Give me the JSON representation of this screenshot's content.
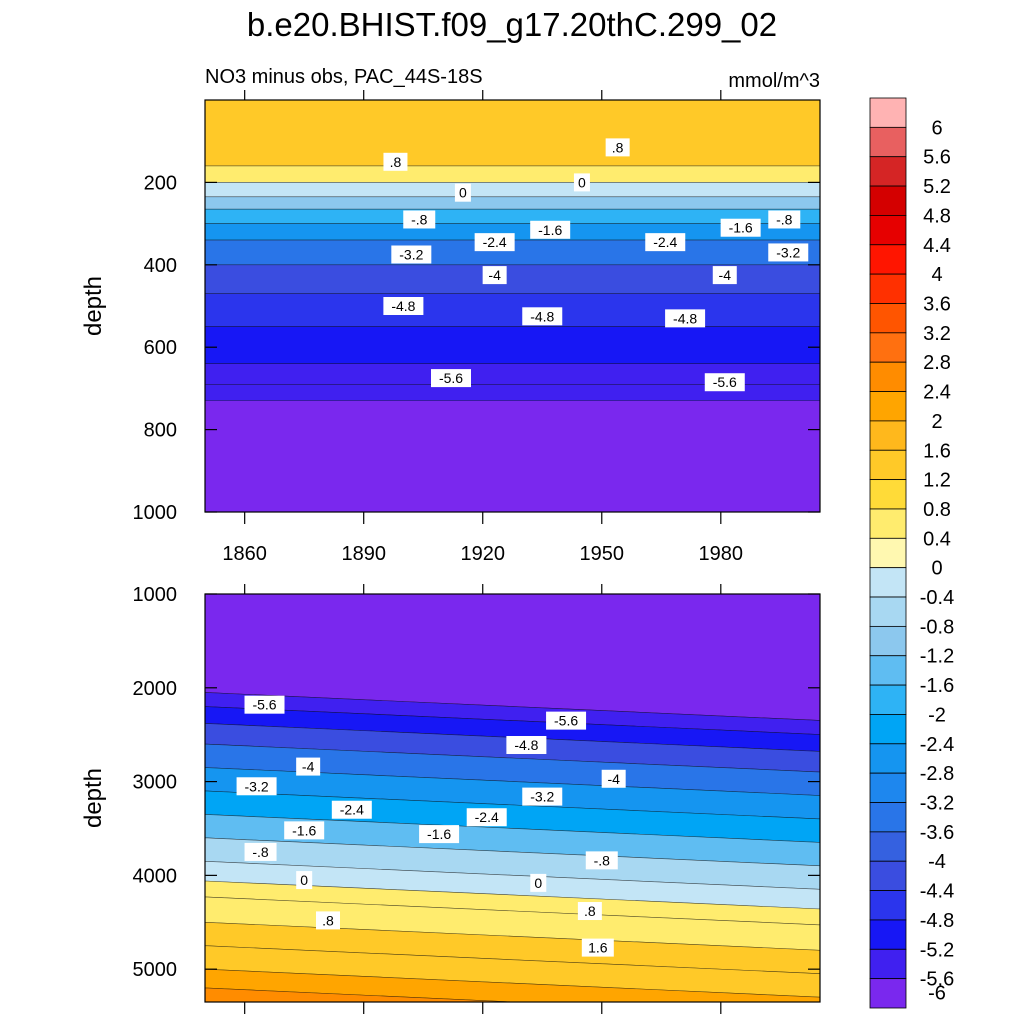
{
  "title": "b.e20.BHIST.f09_g17.20thC.299_02",
  "chart_data": {
    "type": "heatmap",
    "subtitle_left": "NO3 minus obs, PAC_44S-18S",
    "subtitle_right": "mmol/m^3",
    "units": "mmol/m^3",
    "x_range": [
      1850,
      2005
    ],
    "x_ticks": [
      1860,
      1890,
      1920,
      1950,
      1980
    ],
    "x_tick_labels": [
      "1860",
      "1890",
      "1920",
      "1950",
      "1980"
    ],
    "colorbar": {
      "levels": [
        6,
        5.6,
        5.2,
        4.8,
        4.4,
        4,
        3.6,
        3.2,
        2.8,
        2.4,
        2,
        1.6,
        1.2,
        0.8,
        0.4,
        0,
        -0.4,
        -0.8,
        -1.2,
        -1.6,
        -2,
        -2.4,
        -2.8,
        -3.2,
        -3.6,
        -4,
        -4.4,
        -4.8,
        -5.2,
        -5.6,
        -6
      ],
      "labels": [
        "6",
        "5.6",
        "5.2",
        "4.8",
        "4.4",
        "4",
        "3.6",
        "3.2",
        "2.8",
        "2.4",
        "2",
        "1.6",
        "1.2",
        "0.8",
        "0.4",
        "0",
        "-0.4",
        "-0.8",
        "-1.2",
        "-1.6",
        "-2",
        "-2.4",
        "-2.8",
        "-3.2",
        "-3.6",
        "-4",
        "-4.4",
        "-4.8",
        "-5.2",
        "-5.6",
        "-6"
      ],
      "colors": [
        "#FFB3B3",
        "#E86060",
        "#D52525",
        "#D40000",
        "#E60000",
        "#FF1500",
        "#FF3000",
        "#FF5500",
        "#FF7010",
        "#FF8C00",
        "#FFA500",
        "#FFB81C",
        "#FFC928",
        "#FFDB38",
        "#FFEC6E",
        "#FFF8B0",
        "#C3E5F6",
        "#A8D8F2",
        "#8CC8EE",
        "#5FBDF2",
        "#2EB3F5",
        "#00A5F5",
        "#1595F0",
        "#1E87EE",
        "#2975E8",
        "#3561E0",
        "#3A4DE0",
        "#2B35ED",
        "#1717F5",
        "#4020F0",
        "#7A28EE"
      ]
    },
    "panels": [
      {
        "name": "upper",
        "ylabel": "depth",
        "ylim": [
          0,
          1000
        ],
        "y_ticks": [
          200,
          400,
          600,
          800,
          1000
        ],
        "y_tick_labels": [
          "200",
          "400",
          "600",
          "800",
          "1000"
        ],
        "bands": [
          {
            "top": 0,
            "bottom": 160,
            "value": 1.2
          },
          {
            "top": 160,
            "bottom": 200,
            "value": 0.4
          },
          {
            "top": 200,
            "bottom": 235,
            "value": -0.4
          },
          {
            "top": 235,
            "bottom": 265,
            "value": -1.2
          },
          {
            "top": 265,
            "bottom": 300,
            "value": -2.0
          },
          {
            "top": 300,
            "bottom": 340,
            "value": -2.8
          },
          {
            "top": 340,
            "bottom": 400,
            "value": -3.6
          },
          {
            "top": 400,
            "bottom": 470,
            "value": -4.4
          },
          {
            "top": 470,
            "bottom": 550,
            "value": -4.8
          },
          {
            "top": 550,
            "bottom": 640,
            "value": -5.2
          },
          {
            "top": 640,
            "bottom": 690,
            "value": -5.6
          },
          {
            "top": 690,
            "bottom": 730,
            "value": -5.8
          },
          {
            "top": 730,
            "bottom": 1000,
            "value": -6.0
          }
        ],
        "contour_labels": [
          {
            "text": ".8",
            "year": 1898,
            "depth": 150
          },
          {
            "text": ".8",
            "year": 1954,
            "depth": 115
          },
          {
            "text": "0",
            "year": 1915,
            "depth": 225
          },
          {
            "text": "0",
            "year": 1945,
            "depth": 200
          },
          {
            "text": "-.8",
            "year": 1904,
            "depth": 290
          },
          {
            "text": "-.8",
            "year": 1996,
            "depth": 290
          },
          {
            "text": "-1.6",
            "year": 1937,
            "depth": 315
          },
          {
            "text": "-1.6",
            "year": 1985,
            "depth": 310
          },
          {
            "text": "-2.4",
            "year": 1923,
            "depth": 345
          },
          {
            "text": "-2.4",
            "year": 1966,
            "depth": 345
          },
          {
            "text": "-3.2",
            "year": 1902,
            "depth": 375
          },
          {
            "text": "-3.2",
            "year": 1997,
            "depth": 370
          },
          {
            "text": "-4",
            "year": 1923,
            "depth": 425
          },
          {
            "text": "-4",
            "year": 1981,
            "depth": 425
          },
          {
            "text": "-4.8",
            "year": 1900,
            "depth": 500
          },
          {
            "text": "-4.8",
            "year": 1935,
            "depth": 525
          },
          {
            "text": "-4.8",
            "year": 1971,
            "depth": 530
          },
          {
            "text": "-5.6",
            "year": 1912,
            "depth": 675
          },
          {
            "text": "-5.6",
            "year": 1981,
            "depth": 685
          }
        ]
      },
      {
        "name": "lower",
        "ylabel": "depth",
        "ylim": [
          1000,
          5350
        ],
        "y_ticks": [
          1000,
          2000,
          3000,
          4000,
          5000
        ],
        "y_tick_labels": [
          "1000",
          "2000",
          "3000",
          "4000",
          "5000"
        ],
        "bands": [
          {
            "top": 1000,
            "bottom": 2050,
            "value": -6.0
          },
          {
            "top": 2050,
            "bottom": 2200,
            "value": -5.6
          },
          {
            "top": 2200,
            "bottom": 2380,
            "value": -5.2
          },
          {
            "top": 2380,
            "bottom": 2600,
            "value": -4.4
          },
          {
            "top": 2600,
            "bottom": 2850,
            "value": -3.6
          },
          {
            "top": 2850,
            "bottom": 3100,
            "value": -2.8
          },
          {
            "top": 3100,
            "bottom": 3350,
            "value": -2.2
          },
          {
            "top": 3350,
            "bottom": 3600,
            "value": -1.6
          },
          {
            "top": 3600,
            "bottom": 3850,
            "value": -0.8
          },
          {
            "top": 3850,
            "bottom": 4060,
            "value": -0.4
          },
          {
            "top": 4060,
            "bottom": 4230,
            "value": 0.2
          },
          {
            "top": 4230,
            "bottom": 4500,
            "value": 0.6
          },
          {
            "top": 4500,
            "bottom": 4750,
            "value": 1.0
          },
          {
            "top": 4750,
            "bottom": 5000,
            "value": 1.4
          },
          {
            "top": 5000,
            "bottom": 5200,
            "value": 1.8
          },
          {
            "top": 5200,
            "bottom": 5350,
            "value": 2.2
          }
        ],
        "contour_labels": [
          {
            "text": "-5.6",
            "year": 1865,
            "depth": 2180
          },
          {
            "text": "-5.6",
            "year": 1941,
            "depth": 2350
          },
          {
            "text": "-4.8",
            "year": 1931,
            "depth": 2610
          },
          {
            "text": "-4",
            "year": 1876,
            "depth": 2840
          },
          {
            "text": "-4",
            "year": 1953,
            "depth": 2970
          },
          {
            "text": "-3.2",
            "year": 1863,
            "depth": 3050
          },
          {
            "text": "-3.2",
            "year": 1935,
            "depth": 3160
          },
          {
            "text": "-2.4",
            "year": 1887,
            "depth": 3300
          },
          {
            "text": "-2.4",
            "year": 1921,
            "depth": 3380
          },
          {
            "text": "-1.6",
            "year": 1875,
            "depth": 3520
          },
          {
            "text": "-1.6",
            "year": 1909,
            "depth": 3560
          },
          {
            "text": "-.8",
            "year": 1864,
            "depth": 3750
          },
          {
            "text": "-.8",
            "year": 1950,
            "depth": 3840
          },
          {
            "text": "0",
            "year": 1875,
            "depth": 4050
          },
          {
            "text": "0",
            "year": 1934,
            "depth": 4080
          },
          {
            "text": ".8",
            "year": 1881,
            "depth": 4480
          },
          {
            "text": ".8",
            "year": 1947,
            "depth": 4380
          },
          {
            "text": "1.6",
            "year": 1949,
            "depth": 4770
          }
        ]
      }
    ]
  }
}
